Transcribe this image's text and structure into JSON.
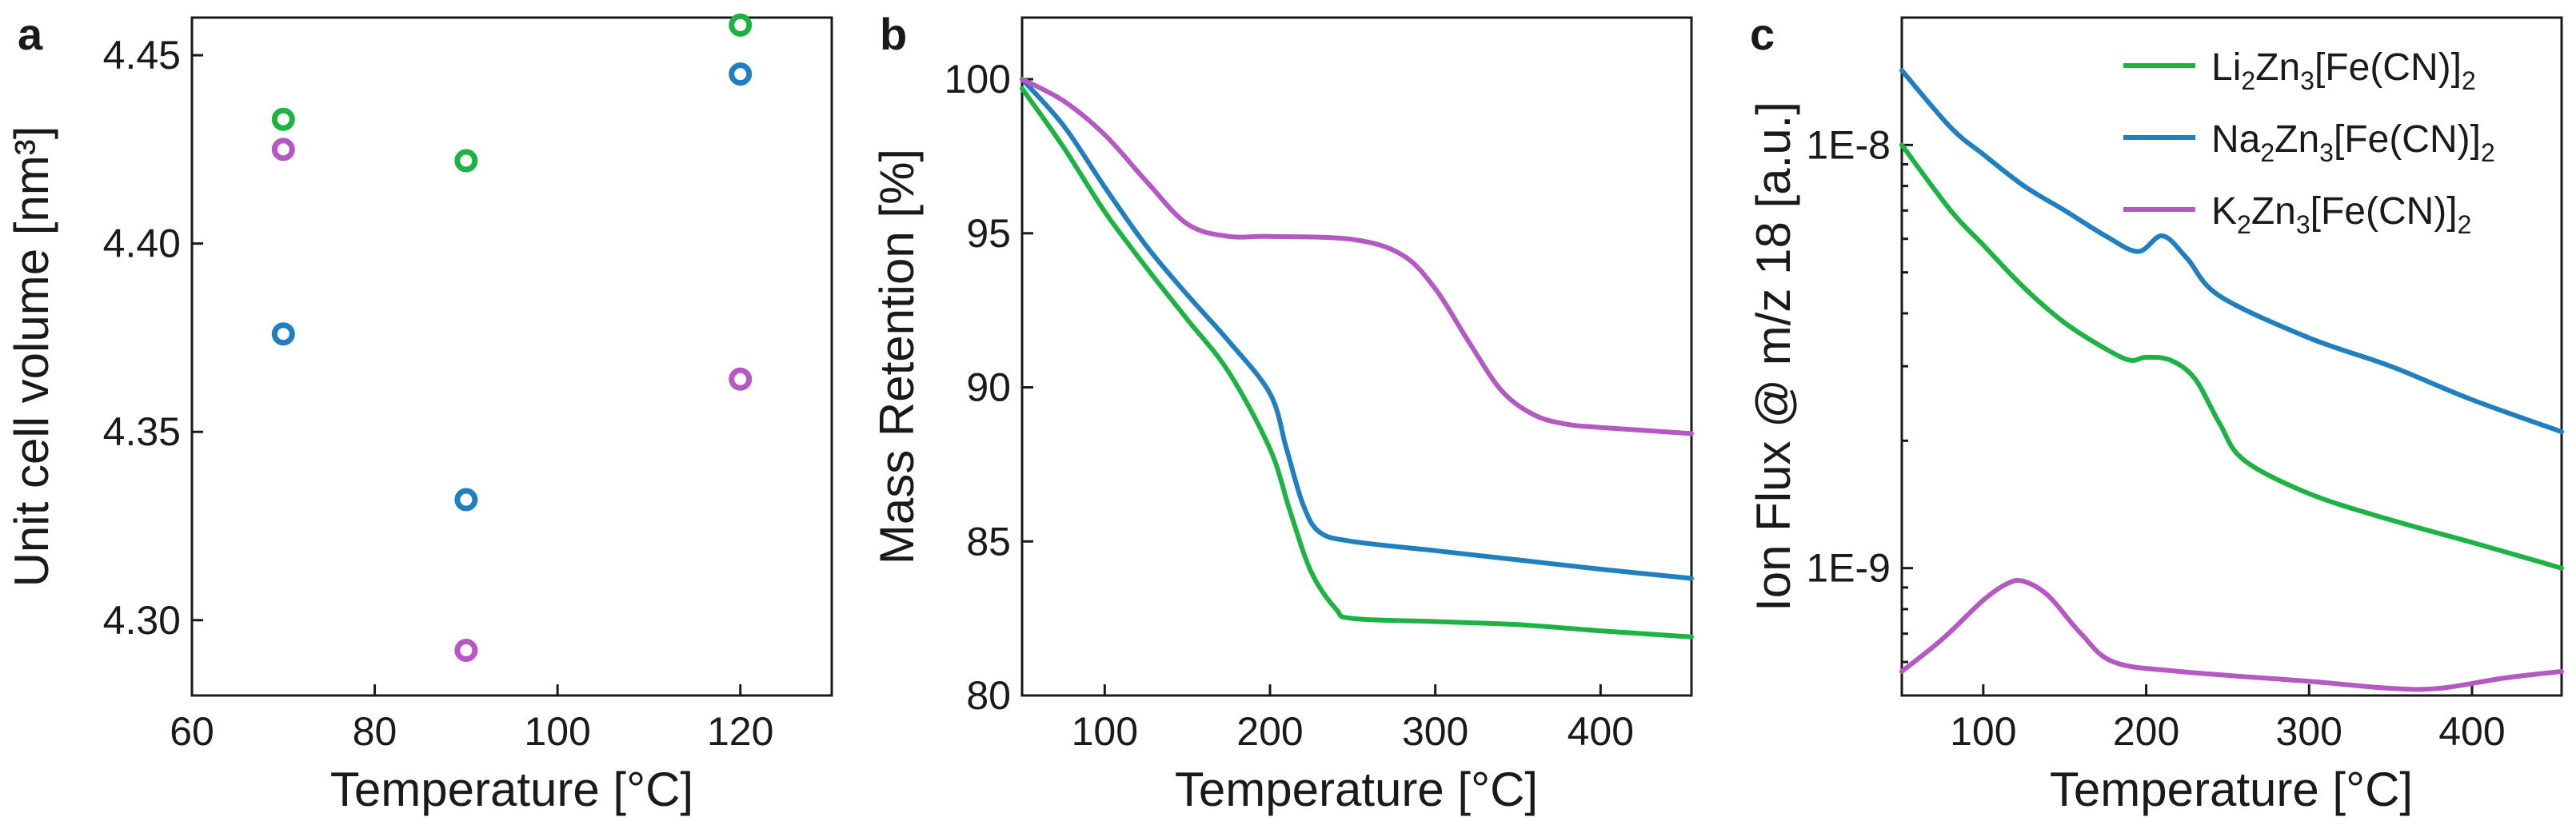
{
  "chart_data": [
    {
      "panel": "a",
      "type": "scatter",
      "xlabel": "Temperature [°C]",
      "ylabel": "Unit cell volume [nm³]",
      "xlim": [
        60,
        130
      ],
      "ylim": [
        4.28,
        4.46
      ],
      "xticks": [
        60,
        80,
        100,
        120
      ],
      "xtick_labels": [
        "60",
        "80",
        "100",
        "120"
      ],
      "yticks": [
        4.3,
        4.35,
        4.4,
        4.45
      ],
      "ytick_labels": [
        "4.30",
        "4.35",
        "4.40",
        "4.45"
      ],
      "series": [
        {
          "name": "Li",
          "color": "#1db343",
          "x": [
            70,
            90,
            120
          ],
          "y": [
            4.433,
            4.422,
            4.458
          ]
        },
        {
          "name": "Na",
          "color": "#1f7fc1",
          "x": [
            70,
            90,
            120
          ],
          "y": [
            4.376,
            4.332,
            4.445
          ]
        },
        {
          "name": "K",
          "color": "#b558c4",
          "x": [
            70,
            90,
            120
          ],
          "y": [
            4.425,
            4.292,
            4.364
          ]
        }
      ]
    },
    {
      "panel": "b",
      "type": "line",
      "xlabel": "Temperature [°C]",
      "ylabel": "Mass Retention [%]",
      "xlim": [
        50,
        455
      ],
      "ylim": [
        80,
        102
      ],
      "xticks": [
        100,
        200,
        300,
        400
      ],
      "xtick_labels": [
        "100",
        "200",
        "300",
        "400"
      ],
      "yticks": [
        80,
        85,
        90,
        95,
        100
      ],
      "ytick_labels": [
        "80",
        "85",
        "90",
        "95",
        "100"
      ],
      "series": [
        {
          "name": "Li",
          "color": "#1db343",
          "x": [
            50,
            75,
            100,
            125,
            150,
            175,
            200,
            212,
            225,
            240,
            250,
            300,
            350,
            400,
            455
          ],
          "y": [
            99.7,
            97.8,
            95.7,
            93.9,
            92.2,
            90.5,
            88.0,
            86.0,
            84.0,
            82.8,
            82.5,
            82.4,
            82.3,
            82.1,
            81.9
          ]
        },
        {
          "name": "Na",
          "color": "#1f7fc1",
          "x": [
            50,
            75,
            100,
            125,
            150,
            175,
            200,
            210,
            220,
            230,
            250,
            300,
            350,
            400,
            455
          ],
          "y": [
            100.0,
            98.5,
            96.5,
            94.6,
            93.0,
            91.5,
            89.8,
            88.0,
            86.2,
            85.3,
            85.0,
            84.7,
            84.4,
            84.1,
            83.8
          ]
        },
        {
          "name": "K",
          "color": "#b558c4",
          "x": [
            50,
            75,
            100,
            125,
            150,
            175,
            200,
            250,
            280,
            300,
            320,
            340,
            360,
            380,
            400,
            455
          ],
          "y": [
            100.0,
            99.3,
            98.2,
            96.7,
            95.3,
            94.9,
            94.9,
            94.8,
            94.3,
            93.2,
            91.5,
            89.9,
            89.1,
            88.8,
            88.7,
            88.5
          ]
        }
      ]
    },
    {
      "panel": "c",
      "type": "line",
      "yscale": "log",
      "xlabel": "Temperature [°C]",
      "ylabel": "Ion Flux @ m/z 18 [a.u.]",
      "xlim": [
        50,
        455
      ],
      "ylim": [
        5e-10,
        2e-08
      ],
      "xticks": [
        100,
        200,
        300,
        400
      ],
      "xtick_labels": [
        "100",
        "200",
        "300",
        "400"
      ],
      "yticks": [
        1e-09,
        1e-08
      ],
      "ytick_labels": [
        "1E-9",
        "1E-8"
      ],
      "legend_position": "top-right",
      "series": [
        {
          "name": "Li",
          "label_parts": [
            "Li",
            "2",
            "Zn",
            "3",
            "[Fe(CN)]",
            "2"
          ],
          "color": "#1db343",
          "x": [
            50,
            80,
            100,
            125,
            150,
            175,
            190,
            200,
            215,
            230,
            245,
            260,
            300,
            350,
            400,
            455
          ],
          "y": [
            1e-08,
            7e-09,
            5.8e-09,
            4.6e-09,
            3.8e-09,
            3.3e-09,
            3.1e-09,
            3.15e-09,
            3.1e-09,
            2.8e-09,
            2.2e-09,
            1.8e-09,
            1.5e-09,
            1.3e-09,
            1.15e-09,
            1e-09
          ]
        },
        {
          "name": "Na",
          "label_parts": [
            "Na",
            "2",
            "Zn",
            "3",
            "[Fe(CN)]",
            "2"
          ],
          "color": "#1f7fc1",
          "x": [
            50,
            80,
            100,
            125,
            150,
            175,
            195,
            210,
            225,
            245,
            300,
            350,
            400,
            455
          ],
          "y": [
            1.5e-08,
            1.1e-08,
            9.5e-09,
            8e-09,
            7e-09,
            6.1e-09,
            5.6e-09,
            6.1e-09,
            5.4e-09,
            4.4e-09,
            3.5e-09,
            3e-09,
            2.5e-09,
            2.1e-09
          ]
        },
        {
          "name": "K",
          "label_parts": [
            "K",
            "2",
            "Zn",
            "3",
            "[Fe(CN)]",
            "2"
          ],
          "color": "#b558c4",
          "x": [
            50,
            75,
            100,
            115,
            125,
            140,
            160,
            180,
            220,
            300,
            350,
            380,
            420,
            455
          ],
          "y": [
            5.7e-10,
            6.8e-10,
            8.4e-10,
            9.2e-10,
            9.3e-10,
            8.6e-10,
            7e-10,
            6e-10,
            5.7e-10,
            5.4e-10,
            5.2e-10,
            5.2e-10,
            5.5e-10,
            5.7e-10
          ]
        }
      ]
    }
  ]
}
